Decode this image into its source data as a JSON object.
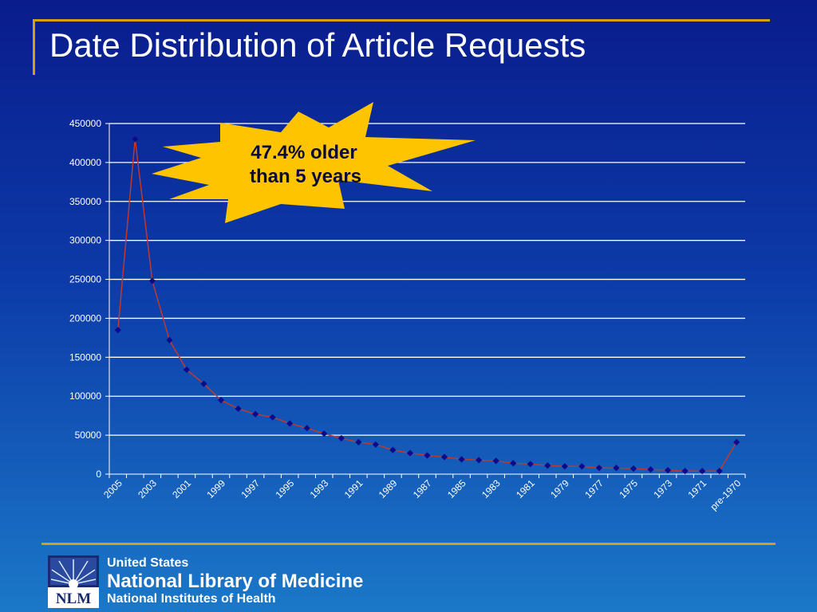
{
  "slide": {
    "title": "Date Distribution of Article Requests"
  },
  "annotation": {
    "line1": "47.4% older",
    "line2": "than 5 years",
    "burst_color": "#ffc400"
  },
  "footer": {
    "org_line1": "United States",
    "org_line2": "National Library of Medicine",
    "org_line3": "National Institutes of Health",
    "logo_text": "NLM"
  },
  "colors": {
    "accent_rule": "#d4a017",
    "line": "#c0392b",
    "marker": "#0a0a8a",
    "gridline": "#ffffff"
  },
  "chart_data": {
    "type": "line",
    "title": "",
    "xlabel": "",
    "ylabel": "",
    "ylim": [
      0,
      450000
    ],
    "yticks": [
      0,
      50000,
      100000,
      150000,
      200000,
      250000,
      300000,
      350000,
      400000,
      450000
    ],
    "grid": true,
    "markers": "diamond",
    "categories": [
      "2005",
      "2004",
      "2003",
      "2002",
      "2001",
      "2000",
      "1999",
      "1998",
      "1997",
      "1996",
      "1995",
      "1994",
      "1993",
      "1992",
      "1991",
      "1990",
      "1989",
      "1988",
      "1987",
      "1986",
      "1985",
      "1984",
      "1983",
      "1982",
      "1981",
      "1980",
      "1979",
      "1978",
      "1977",
      "1976",
      "1975",
      "1974",
      "1973",
      "1972",
      "1971",
      "1970",
      "pre-1970"
    ],
    "labeled_categories": [
      "2005",
      "2003",
      "2001",
      "1999",
      "1997",
      "1995",
      "1993",
      "1991",
      "1989",
      "1987",
      "1985",
      "1983",
      "1981",
      "1979",
      "1977",
      "1975",
      "1973",
      "1971",
      "pre-1970"
    ],
    "values": [
      185000,
      430000,
      248000,
      172000,
      134000,
      116000,
      95000,
      84000,
      77000,
      73000,
      65000,
      59000,
      52000,
      46000,
      41000,
      38000,
      31000,
      27000,
      24000,
      22000,
      19000,
      18000,
      17000,
      14000,
      13000,
      11000,
      10000,
      10000,
      8000,
      8000,
      7000,
      6000,
      5000,
      4000,
      4000,
      4000,
      41000
    ]
  }
}
